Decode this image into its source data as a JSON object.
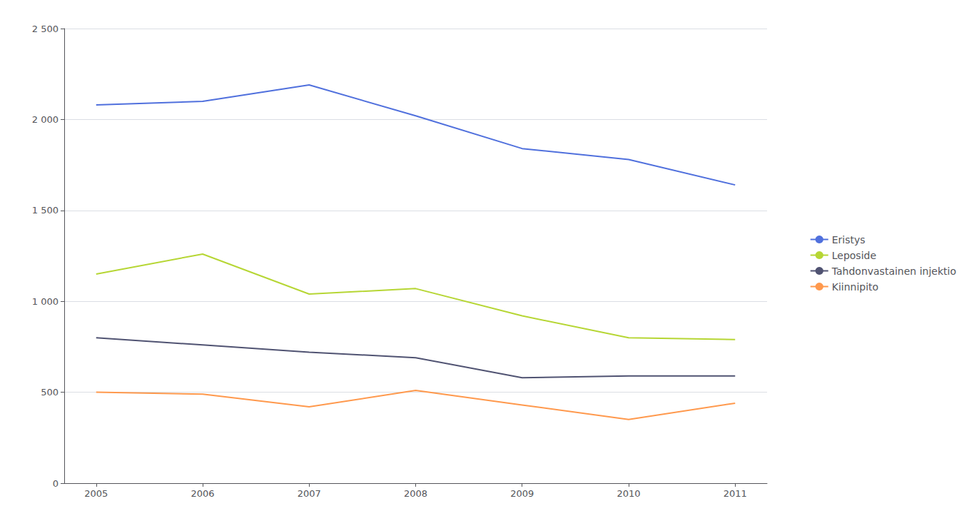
{
  "chart_data": {
    "type": "line",
    "x": [
      2005,
      2006,
      2007,
      2008,
      2009,
      2010,
      2011
    ],
    "xlim": [
      2004.7,
      2011.3
    ],
    "xticks": [
      2005,
      2006,
      2007,
      2008,
      2009,
      2010,
      2011
    ],
    "series": [
      {
        "name": "Eristys",
        "values": [
          2080,
          2100,
          2190,
          2020,
          1840,
          1780,
          1640
        ]
      },
      {
        "name": "Leposide",
        "values": [
          1150,
          1260,
          1040,
          1070,
          920,
          800,
          790
        ]
      },
      {
        "name": "Tahdonvastainen injektio",
        "values": [
          800,
          760,
          720,
          690,
          580,
          590,
          590
        ]
      },
      {
        "name": "Kiinnipito",
        "values": [
          500,
          490,
          420,
          510,
          430,
          350,
          440
        ]
      }
    ],
    "ylim": [
      0,
      2500
    ],
    "yticks": [
      0,
      500,
      {
        "value": 1000,
        "label": "1 000"
      },
      {
        "value": 1500,
        "label": "1 500"
      },
      {
        "value": 2000,
        "label": "2 000"
      },
      {
        "value": 2500,
        "label": "2 500"
      }
    ],
    "grid": true,
    "legend": "right"
  }
}
